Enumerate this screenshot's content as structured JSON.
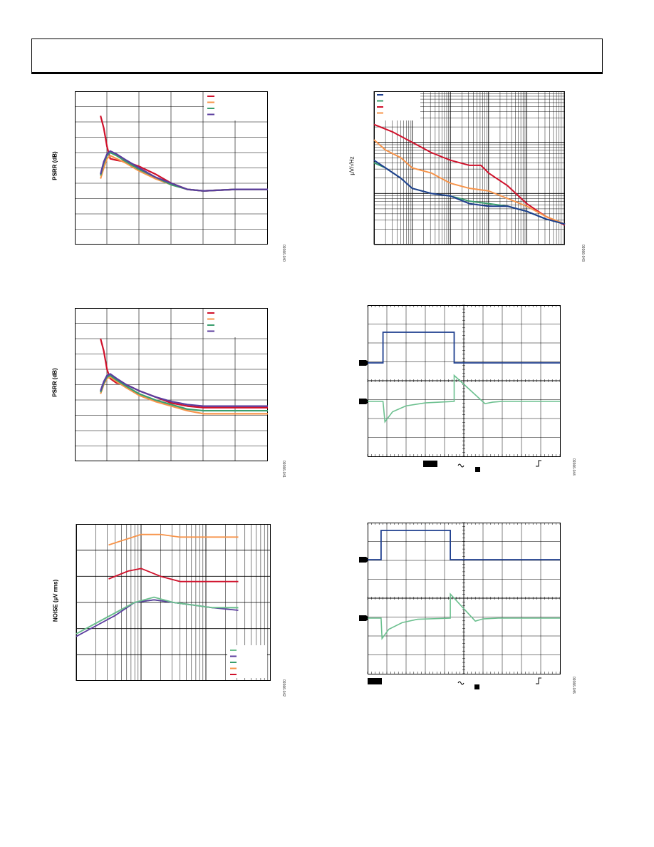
{
  "page": {
    "header": ""
  },
  "colors": {
    "red": "#d0112b",
    "orange": "#f7944a",
    "green": "#3a9e6d",
    "purple": "#5b3d9e",
    "navy": "#1f3f8f",
    "mint": "#6cc08f"
  },
  "figures": {
    "psrr1": {
      "ylabel": "PSRR (dB)",
      "code": "09366-040"
    },
    "psrr2": {
      "ylabel": "PSRR (dB)",
      "code": "09366-041"
    },
    "noise": {
      "ylabel": "NOISE (µV rms)",
      "code": "09366-042"
    },
    "density": {
      "ylabel": "µV/√Hz",
      "code": "09366-043"
    },
    "scope1": {
      "code": "09366-044"
    },
    "scope2": {
      "code": "09366-045"
    }
  },
  "chart_data": [
    {
      "id": "psrr1",
      "type": "line",
      "ylabel": "PSRR (dB)",
      "grid": true,
      "legend": "top-right",
      "xlim": [
        0,
        6
      ],
      "ylim": [
        0,
        10
      ],
      "series": [
        {
          "color": "red",
          "x": [
            0.8,
            0.9,
            1.0,
            1.1,
            1.3,
            1.6,
            2.0,
            2.5,
            3.0,
            3.5,
            4.0,
            5.0,
            6.0
          ],
          "y": [
            8.4,
            7.6,
            6.4,
            5.6,
            5.5,
            5.4,
            5.1,
            4.6,
            4.0,
            3.6,
            3.5,
            3.6,
            3.6
          ]
        },
        {
          "color": "orange",
          "x": [
            0.8,
            0.9,
            1.0,
            1.1,
            1.3,
            1.6,
            2.0,
            2.5,
            3.0,
            3.5,
            4.0,
            5.0,
            6.0
          ],
          "y": [
            4.3,
            5.0,
            5.6,
            5.8,
            5.6,
            5.3,
            4.8,
            4.3,
            3.9,
            3.6,
            3.5,
            3.6,
            3.6
          ]
        },
        {
          "color": "green",
          "x": [
            0.8,
            0.9,
            1.0,
            1.1,
            1.3,
            1.6,
            2.0,
            2.5,
            3.0,
            3.5,
            4.0,
            5.0,
            6.0
          ],
          "y": [
            4.5,
            5.3,
            5.8,
            6.0,
            5.8,
            5.4,
            4.9,
            4.4,
            3.9,
            3.6,
            3.5,
            3.6,
            3.6
          ]
        },
        {
          "color": "purple",
          "x": [
            0.8,
            0.9,
            1.0,
            1.1,
            1.3,
            1.6,
            2.0,
            2.5,
            3.0,
            3.5,
            4.0,
            5.0,
            6.0
          ],
          "y": [
            4.6,
            5.4,
            5.9,
            6.1,
            5.9,
            5.5,
            5.0,
            4.4,
            4.0,
            3.6,
            3.5,
            3.6,
            3.6
          ]
        }
      ]
    },
    {
      "id": "psrr2",
      "type": "line",
      "ylabel": "PSRR (dB)",
      "grid": true,
      "legend": "top-right",
      "xlim": [
        0,
        6
      ],
      "ylim": [
        0,
        10
      ],
      "series": [
        {
          "color": "red",
          "x": [
            0.8,
            0.9,
            1.0,
            1.1,
            1.3,
            1.6,
            2.0,
            2.5,
            3.0,
            3.5,
            4.0,
            5.0,
            6.0
          ],
          "y": [
            8.0,
            7.2,
            6.0,
            5.4,
            5.1,
            5.0,
            4.6,
            4.2,
            3.8,
            3.6,
            3.5,
            3.5,
            3.5
          ]
        },
        {
          "color": "orange",
          "x": [
            0.8,
            0.9,
            1.0,
            1.1,
            1.3,
            1.6,
            2.0,
            2.5,
            3.0,
            3.5,
            4.0,
            5.0,
            6.0
          ],
          "y": [
            4.4,
            5.0,
            5.4,
            5.5,
            5.2,
            4.8,
            4.3,
            3.9,
            3.6,
            3.3,
            3.1,
            3.1,
            3.1
          ]
        },
        {
          "color": "green",
          "x": [
            0.8,
            0.9,
            1.0,
            1.1,
            1.3,
            1.6,
            2.0,
            2.5,
            3.0,
            3.5,
            4.0,
            5.0,
            6.0
          ],
          "y": [
            4.5,
            5.1,
            5.5,
            5.6,
            5.3,
            4.9,
            4.4,
            4.0,
            3.7,
            3.4,
            3.3,
            3.3,
            3.3
          ]
        },
        {
          "color": "purple",
          "x": [
            0.8,
            0.9,
            1.0,
            1.1,
            1.3,
            1.6,
            2.0,
            2.5,
            3.0,
            3.5,
            4.0,
            5.0,
            6.0
          ],
          "y": [
            4.6,
            5.2,
            5.6,
            5.7,
            5.4,
            5.0,
            4.6,
            4.2,
            3.9,
            3.7,
            3.6,
            3.6,
            3.6
          ]
        }
      ]
    },
    {
      "id": "noise",
      "type": "line",
      "ylabel": "NOISE (µV rms)",
      "grid": true,
      "xscale": "log",
      "legend": "bottom-right",
      "xlim": [
        0,
        3
      ],
      "ylim": [
        0,
        6
      ],
      "series": [
        {
          "color": "orange",
          "x": [
            0.5,
            1.0,
            1.3,
            1.6,
            2.0,
            2.5
          ],
          "y": [
            5.2,
            5.6,
            5.6,
            5.5,
            5.5,
            5.5
          ]
        },
        {
          "color": "red",
          "x": [
            0.5,
            0.8,
            1.0,
            1.3,
            1.6,
            2.0,
            2.5
          ],
          "y": [
            3.9,
            4.2,
            4.3,
            4.0,
            3.8,
            3.8,
            3.8
          ]
        },
        {
          "color": "green",
          "x": [
            0.0,
            0.3,
            0.6,
            0.9,
            1.2,
            1.5,
            1.8,
            2.1,
            2.5
          ],
          "y": [
            1.8,
            2.2,
            2.6,
            3.0,
            3.1,
            3.0,
            2.9,
            2.8,
            2.8
          ]
        },
        {
          "color": "purple",
          "x": [
            0.0,
            0.3,
            0.6,
            0.9,
            1.2,
            1.5,
            1.8,
            2.1,
            2.5
          ],
          "y": [
            1.7,
            2.1,
            2.5,
            3.0,
            3.1,
            3.0,
            2.9,
            2.8,
            2.7
          ]
        },
        {
          "color": "mint",
          "x": [
            0.0,
            0.3,
            0.6,
            0.9,
            1.2,
            1.5,
            1.8,
            2.1,
            2.5
          ],
          "y": [
            1.8,
            2.2,
            2.6,
            3.0,
            3.2,
            3.0,
            2.9,
            2.8,
            2.8
          ]
        }
      ]
    },
    {
      "id": "density",
      "type": "line",
      "ylabel": "µV/√Hz",
      "grid": true,
      "xscale": "log",
      "yscale": "log",
      "legend": "top-left",
      "xlim": [
        0,
        5
      ],
      "ylim": [
        0,
        3
      ],
      "series": [
        {
          "color": "red",
          "x": [
            0.0,
            0.5,
            1.0,
            1.5,
            2.0,
            2.5,
            2.8,
            3.0,
            3.5,
            4.0,
            4.5,
            5.0
          ],
          "y": [
            2.35,
            2.2,
            2.0,
            1.8,
            1.65,
            1.55,
            1.55,
            1.4,
            1.15,
            0.8,
            0.55,
            0.38
          ]
        },
        {
          "color": "orange",
          "x": [
            0.0,
            0.3,
            0.7,
            1.0,
            1.5,
            2.0,
            2.5,
            3.0,
            3.5,
            4.0,
            4.5,
            5.0
          ],
          "y": [
            2.05,
            1.85,
            1.7,
            1.5,
            1.4,
            1.2,
            1.1,
            1.05,
            0.9,
            0.75,
            0.55,
            0.4
          ]
        },
        {
          "color": "green",
          "x": [
            0.0,
            0.3,
            0.7,
            1.0,
            1.5,
            2.0,
            2.5,
            3.0,
            3.5,
            4.0,
            4.5,
            5.0
          ],
          "y": [
            1.6,
            1.5,
            1.3,
            1.1,
            1.0,
            0.95,
            0.85,
            0.8,
            0.75,
            0.65,
            0.5,
            0.4
          ]
        },
        {
          "color": "navy",
          "x": [
            0.0,
            0.3,
            0.7,
            1.0,
            1.5,
            2.0,
            2.5,
            3.0,
            3.5,
            4.0,
            4.5,
            5.0
          ],
          "y": [
            1.65,
            1.5,
            1.3,
            1.1,
            1.0,
            0.95,
            0.8,
            0.75,
            0.75,
            0.65,
            0.5,
            0.4
          ]
        }
      ]
    }
  ],
  "scopes": {
    "scope1": {
      "top": {
        "color": "navy",
        "x": [
          0,
          0.8,
          0.8,
          4.5,
          4.5,
          10
        ],
        "y": [
          0,
          0,
          1,
          1,
          0,
          0
        ]
      },
      "bottom": {
        "color": "mint",
        "x": [
          0,
          0.8,
          0.9,
          1.3,
          2,
          3,
          4.5,
          4.5,
          6.1,
          6.5,
          7,
          10
        ],
        "y": [
          0,
          0,
          -0.55,
          -0.28,
          -0.12,
          -0.04,
          0,
          0.7,
          -0.06,
          -0.02,
          0,
          0
        ]
      }
    },
    "scope2": {
      "top": {
        "color": "navy",
        "x": [
          0,
          0.7,
          0.7,
          4.3,
          4.3,
          10
        ],
        "y": [
          0,
          0,
          1,
          1,
          0,
          0
        ]
      },
      "bottom": {
        "color": "mint",
        "x": [
          0,
          0.7,
          0.75,
          1.1,
          1.8,
          2.6,
          4.3,
          4.3,
          5.6,
          6.0,
          6.8,
          10
        ],
        "y": [
          0,
          0,
          -0.55,
          -0.3,
          -0.12,
          -0.03,
          0,
          0.65,
          -0.08,
          -0.02,
          0,
          0
        ]
      }
    }
  }
}
